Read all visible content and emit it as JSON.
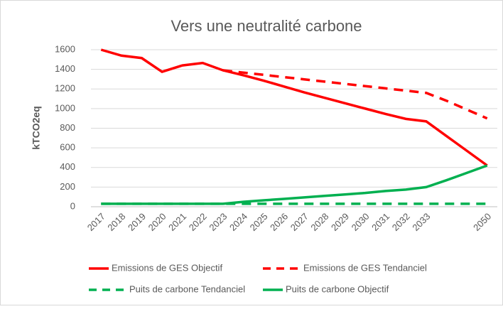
{
  "chart_data": {
    "type": "line",
    "title": "Vers une neutralité carbone",
    "y_label": "kTCO2eq",
    "categories": [
      "2017",
      "2018",
      "2019",
      "2020",
      "2021",
      "2022",
      "2023",
      "2024",
      "2025",
      "2026",
      "2027",
      "2028",
      "2029",
      "2030",
      "2031",
      "2032",
      "2033",
      null,
      null,
      "2050"
    ],
    "series": [
      {
        "name": "Emissions de GES Objectif",
        "color": "#ff0000",
        "dashed": false,
        "values": [
          1600,
          1540,
          1515,
          1375,
          1440,
          1465,
          1390,
          1340,
          1285,
          1225,
          1165,
          1110,
          1055,
          1000,
          945,
          895,
          870,
          720,
          570,
          420
        ]
      },
      {
        "name": "Emissions de GES Tendanciel",
        "color": "#ff0000",
        "dashed": true,
        "values": [
          null,
          null,
          null,
          null,
          null,
          null,
          1390,
          1367,
          1344,
          1321,
          1298,
          1275,
          1252,
          1229,
          1206,
          1183,
          1160,
          1080,
          990,
          900
        ]
      },
      {
        "name": "Puits de carbone Tendanciel",
        "color": "#00b050",
        "dashed": true,
        "values": [
          30,
          30,
          30,
          30,
          30,
          30,
          30,
          30,
          30,
          30,
          30,
          30,
          30,
          30,
          30,
          30,
          30,
          30,
          30,
          30
        ]
      },
      {
        "name": "Puits de carbone Objectif",
        "color": "#00b050",
        "dashed": false,
        "values": [
          30,
          30,
          30,
          30,
          30,
          30,
          30,
          50,
          65,
          80,
          95,
          110,
          125,
          140,
          160,
          175,
          200,
          270,
          345,
          420
        ]
      }
    ],
    "ylim": [
      0,
      1600
    ],
    "yticks": [
      0,
      200,
      400,
      600,
      800,
      1000,
      1200,
      1400,
      1600
    ],
    "grid": true
  }
}
